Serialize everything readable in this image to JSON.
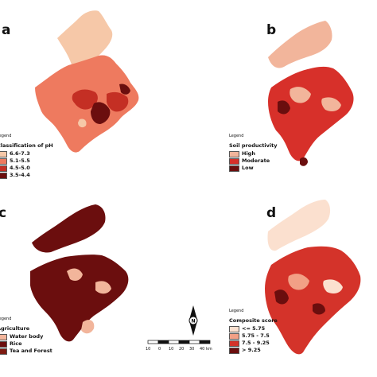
{
  "panels": [
    {
      "id": "a",
      "letter": "a",
      "legend_title": "Legend",
      "heading": "Classification of pH",
      "classes": [
        {
          "label": "6.6-7.3",
          "color": "#f6c8a8"
        },
        {
          "label": "5.1-5.5",
          "color": "#ee7a5f"
        },
        {
          "label": "4.5-5.0",
          "color": "#c42f24"
        },
        {
          "label": "3.5-4.4",
          "color": "#6b0e0e"
        }
      ]
    },
    {
      "id": "b",
      "letter": "b",
      "legend_title": "Legend",
      "heading": "Soil productivity",
      "classes": [
        {
          "label": "High",
          "color": "#f2b59b"
        },
        {
          "label": "Moderate",
          "color": "#d7302a"
        },
        {
          "label": "Low",
          "color": "#6b0e0e"
        }
      ]
    },
    {
      "id": "c",
      "letter": "c",
      "legend_title": "Legend",
      "heading": "Agriculture",
      "classes": [
        {
          "label": "Water body",
          "color": "#f2b59b"
        },
        {
          "label": "Rice",
          "color": "#6b0e0e"
        },
        {
          "label": "Tea and Forest",
          "color": "#7d1a12"
        }
      ]
    },
    {
      "id": "d",
      "letter": "d",
      "legend_title": "Legend",
      "heading": "Composite score",
      "classes": [
        {
          "label": "<= 5.75",
          "color": "#fbe0cf"
        },
        {
          "label": "5.75 - 7.5",
          "color": "#f2a086"
        },
        {
          "label": "7.5 - 9.25",
          "color": "#d4332a"
        },
        {
          "label": "> 9.25",
          "color": "#6b0e0e"
        }
      ]
    }
  ],
  "north_arrow": {
    "label": "N"
  },
  "scale_bar": {
    "ticks": [
      "10",
      "0",
      "10",
      "20",
      "30",
      "40 km"
    ]
  },
  "colors": {
    "pale": "#f6c8a8",
    "light": "#ee7a5f",
    "medium": "#c42f24",
    "dark": "#6b0e0e"
  }
}
